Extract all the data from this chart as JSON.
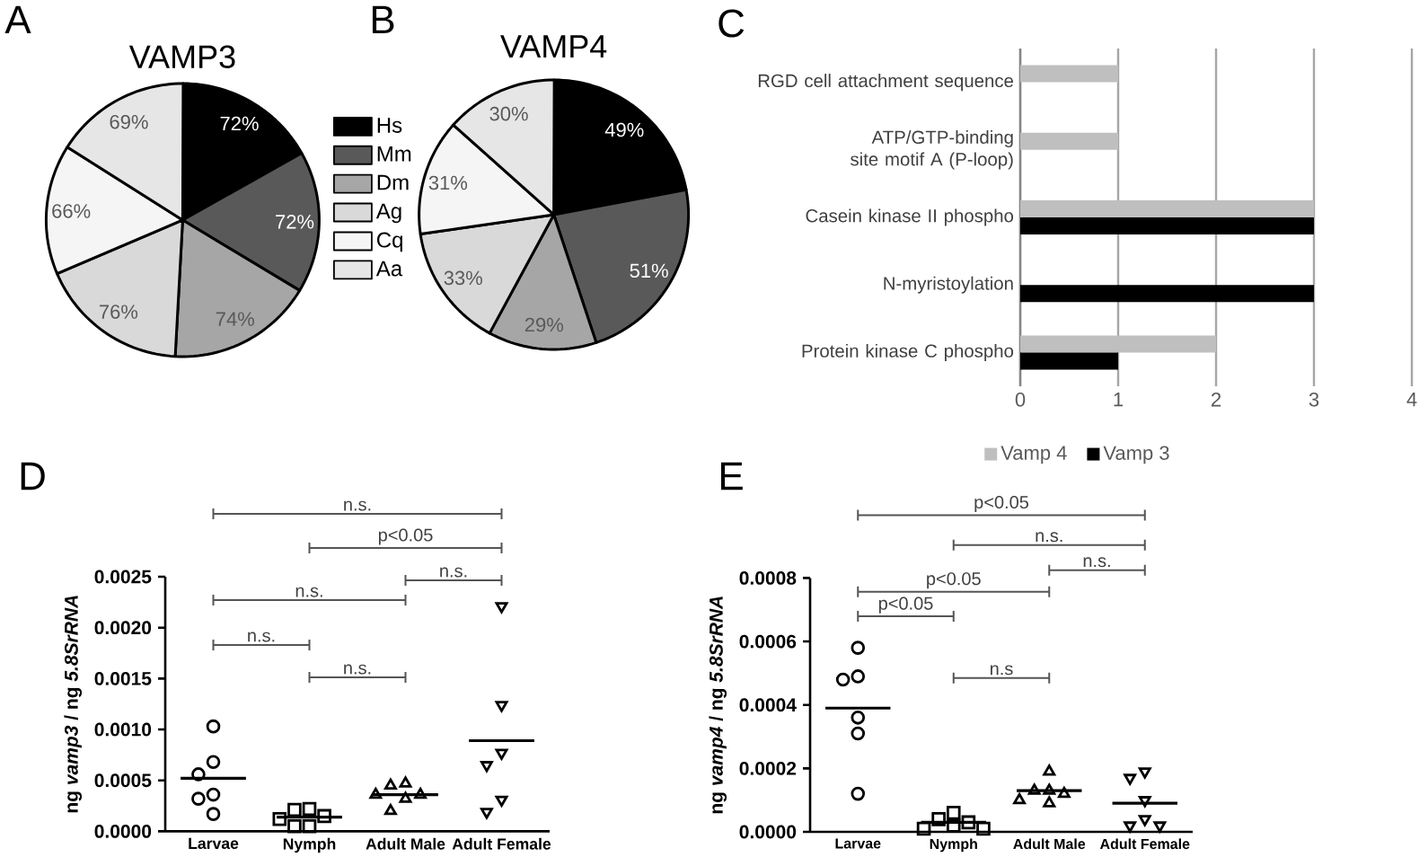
{
  "chart_data": [
    {
      "type": "pie",
      "title": "VAMP3",
      "annotations": [
        "A"
      ],
      "categories": [
        "Hs",
        "Mm",
        "Dm",
        "Ag",
        "Cq",
        "Aa"
      ],
      "values": [
        72,
        72,
        74,
        76,
        66,
        69
      ],
      "colors": [
        "#000000",
        "#595959",
        "#a6a6a6",
        "#d9d9d9",
        "#f5f5f5",
        "#e6e6e6"
      ],
      "value_labels": [
        "72%",
        "72%",
        "74%",
        "76%",
        "66%",
        "69%"
      ],
      "legend": "right"
    },
    {
      "type": "pie",
      "title": "VAMP4",
      "annotations": [
        "B"
      ],
      "categories": [
        null,
        null,
        null,
        null,
        null,
        null
      ],
      "values": [
        49,
        51,
        29,
        33,
        31,
        30
      ],
      "colors": [
        "#000000",
        "#595959",
        "#a6a6a6",
        "#d9d9d9",
        "#f5f5f5",
        "#e6e6e6"
      ],
      "value_labels": [
        "49%",
        "51%",
        "29%",
        "33%",
        "31%",
        "30%"
      ]
    },
    {
      "type": "bar",
      "orientation": "horizontal",
      "annotations": [
        "C"
      ],
      "categories": [
        "RGD cell attachment sequence",
        "ATP/GTP-binding site motif A (P-loop)",
        "Casein kinase II phospho",
        "N-myristoylation",
        "Protein kinase C phospho"
      ],
      "series": [
        {
          "name": "Vamp 4",
          "color": "#bfbfbf",
          "values": [
            1,
            1,
            3,
            null,
            2
          ]
        },
        {
          "name": "Vamp 3",
          "color": "#000000",
          "values": [
            null,
            null,
            3,
            3,
            1
          ]
        }
      ],
      "xlim": [
        0,
        4
      ],
      "xticks": [
        0,
        1,
        2,
        3,
        4
      ],
      "grid": "x",
      "legend": "bottom"
    },
    {
      "type": "scatter",
      "annotations": [
        "D",
        "n.s.",
        "p<0.05",
        "n.s.",
        "n.s.",
        "n.s.",
        "n.s."
      ],
      "ylabel": "ng *vamp3* / ng *5.8SrRNA*",
      "categories": [
        "Larvae",
        "Nymph",
        "Adult Male",
        "Adult Female"
      ],
      "series": [
        {
          "type": "scatter",
          "marker": "circle",
          "color": "#000000",
          "x": [
            "Larvae",
            "Larvae",
            "Larvae",
            "Larvae",
            "Larvae",
            "Larvae"
          ],
          "values": [
            0.00103,
            0.00068,
            0.00056,
            0.00036,
            0.00032,
            0.00017
          ]
        },
        {
          "type": "scatter",
          "marker": "square",
          "color": "#000000",
          "x": [
            "Nymph",
            "Nymph",
            "Nymph",
            "Nymph",
            "Nymph",
            "Nymph"
          ],
          "values": [
            0.00022,
            0.00021,
            0.00015,
            0.00012,
            5e-05,
            5e-05
          ]
        },
        {
          "type": "scatter",
          "marker": "triangle",
          "color": "#000000",
          "x": [
            "Adult Male",
            "Adult Male",
            "Adult Male",
            "Adult Male",
            "Adult Male",
            "Adult Male"
          ],
          "values": [
            0.00047,
            0.00045,
            0.00036,
            0.00036,
            0.00032,
            0.0002
          ]
        },
        {
          "type": "scatter",
          "marker": "triangle-down",
          "color": "#000000",
          "x": [
            "Adult Female",
            "Adult Female",
            "Adult Female",
            "Adult Female",
            "Adult Female",
            "Adult Female"
          ],
          "values": [
            0.00221,
            0.00124,
            0.00077,
            0.00065,
            0.00031,
            0.00019
          ]
        }
      ],
      "ref_lines": [
        {
          "axis": "y",
          "value": 0.00052,
          "color": "#000000"
        },
        {
          "axis": "y",
          "value": 0.00014,
          "color": "#000000"
        },
        {
          "axis": "y",
          "value": 0.00036,
          "color": "#000000"
        },
        {
          "axis": "y",
          "value": 0.00089,
          "color": "#000000"
        }
      ],
      "ylim": [
        0,
        0.0025
      ],
      "yticks": [
        {
          "value": 0,
          "label": "0.0000"
        },
        0.0005,
        {
          "value": 0.001,
          "label": "0.0010"
        },
        0.0015,
        {
          "value": 0.002,
          "label": "0.0020"
        },
        0.0025
      ]
    },
    {
      "type": "scatter",
      "annotations": [
        "E",
        "p<0.05",
        "n.s.",
        "n.s.",
        "p<0.05",
        "p<0.05",
        "n.s"
      ],
      "ylabel": "ng *vamp4* / ng *5.8SrRNA*",
      "categories": [
        "Larvae",
        "Nymph",
        "Adult Male",
        "Adult Female"
      ],
      "series": [
        {
          "type": "scatter",
          "marker": "circle",
          "color": "#000000",
          "x": [
            "Larvae",
            "Larvae",
            "Larvae",
            "Larvae",
            "Larvae",
            "Larvae"
          ],
          "values": [
            0.00058,
            0.00049,
            0.00048,
            0.00036,
            0.00031,
            0.00012
          ]
        },
        {
          "type": "scatter",
          "marker": "square",
          "color": "#000000",
          "x": [
            "Nymph",
            "Nymph",
            "Nymph",
            "Nymph",
            "Nymph",
            "Nymph"
          ],
          "values": [
            6e-05,
            4e-05,
            3e-05,
            2e-05,
            1e-05,
            1e-05
          ]
        },
        {
          "type": "scatter",
          "marker": "triangle",
          "color": "#000000",
          "x": [
            "Adult Male",
            "Adult Male",
            "Adult Male",
            "Adult Male",
            "Adult Male",
            "Adult Male"
          ],
          "values": [
            0.00019,
            0.00013,
            0.00013,
            0.00012,
            0.0001,
            9e-05
          ]
        },
        {
          "type": "scatter",
          "marker": "triangle-down",
          "color": "#000000",
          "x": [
            "Adult Female",
            "Adult Female",
            "Adult Female",
            "Adult Female",
            "Adult Female",
            "Adult Female"
          ],
          "values": [
            0.00019,
            0.00017,
            0.0001,
            4e-05,
            2e-05,
            2e-05
          ]
        }
      ],
      "ref_lines": [
        {
          "axis": "y",
          "value": 0.00039,
          "color": "#000000"
        },
        {
          "axis": "y",
          "value": 3e-05,
          "color": "#000000"
        },
        {
          "axis": "y",
          "value": 0.00013,
          "color": "#000000"
        },
        {
          "axis": "y",
          "value": 9e-05,
          "color": "#000000"
        }
      ],
      "ylim": [
        0,
        0.0008
      ],
      "yticks": [
        {
          "value": 0,
          "label": "0.0000"
        },
        0.0002,
        0.0004,
        0.0006,
        0.0008
      ]
    }
  ]
}
